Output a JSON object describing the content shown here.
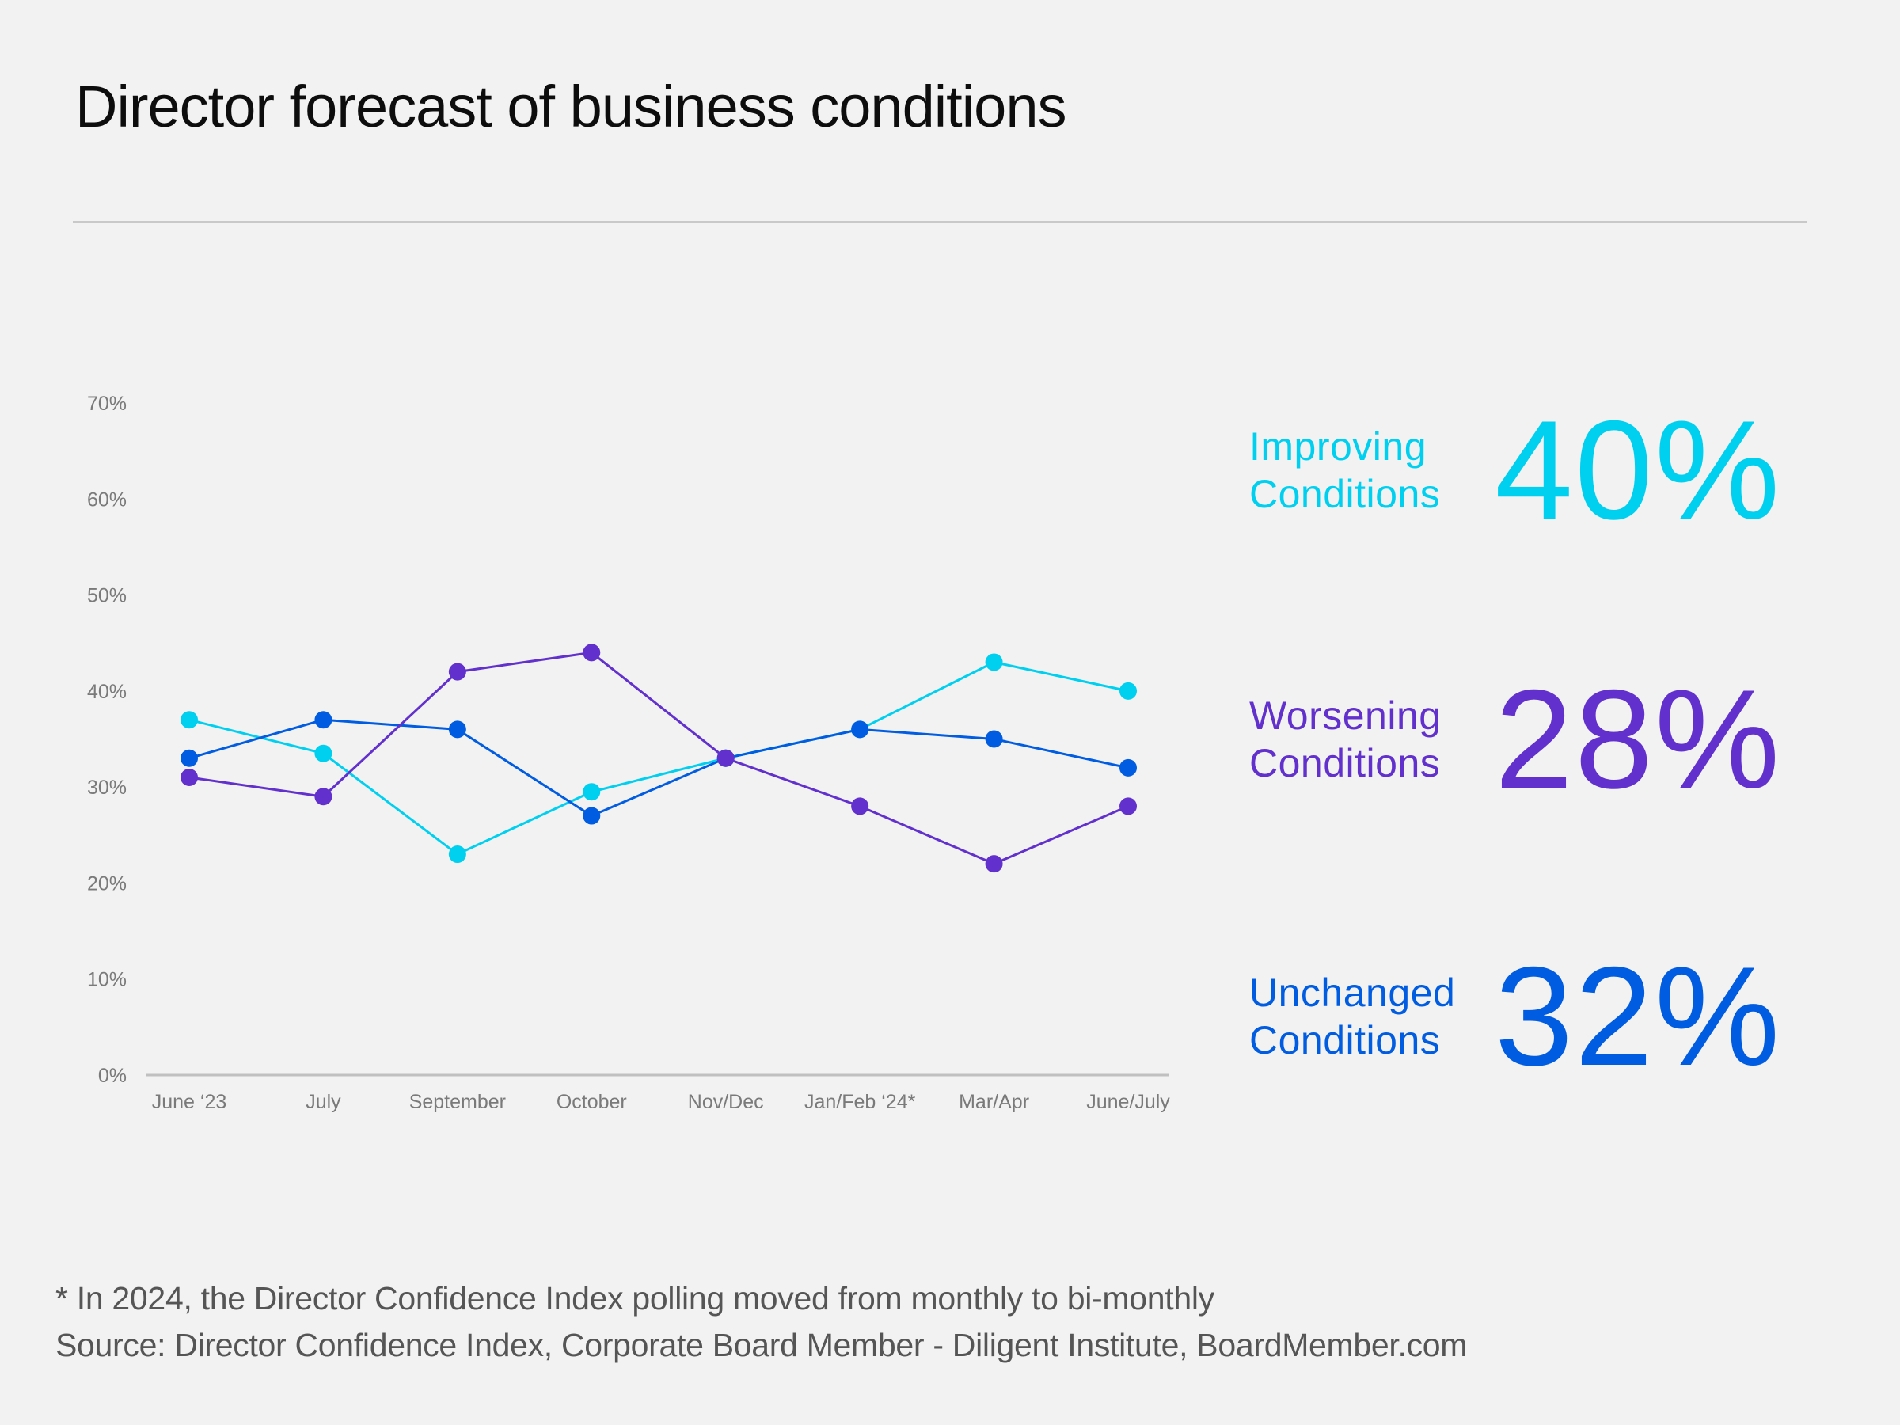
{
  "title": "Director forecast of business conditions",
  "colors": {
    "improving": "#00d0f0",
    "worsening": "#6230cc",
    "unchanged": "#005ce0",
    "axis": "#c0c0c0",
    "tick_text": "#7a7a7a"
  },
  "kpis": [
    {
      "line1": "Improving",
      "line2": "Conditions",
      "value": "40%",
      "color": "#00d0f0"
    },
    {
      "line1": "Worsening",
      "line2": "Conditions",
      "value": "28%",
      "color": "#6230cc"
    },
    {
      "line1": "Unchanged",
      "line2": "Conditions",
      "value": "32%",
      "color": "#005ce0"
    }
  ],
  "footer": {
    "note": "*  In 2024, the Director Confidence Index polling moved from monthly to bi-monthly",
    "source": "Source: Director Confidence Index, Corporate Board Member - Diligent Institute, BoardMember.com"
  },
  "chart_data": {
    "type": "line",
    "title": "Director forecast of business conditions",
    "xlabel": "",
    "ylabel": "",
    "categories": [
      "June ‘23",
      "July",
      "September",
      "October",
      "Nov/Dec",
      "Jan/Feb ‘24*",
      "Mar/Apr",
      "June/July"
    ],
    "y_ticks": [
      "0%",
      "10%",
      "20%",
      "30%",
      "40%",
      "50%",
      "60%",
      "70%"
    ],
    "ylim": [
      0,
      70
    ],
    "grid": false,
    "legend": "none (values labeled at right)",
    "series": [
      {
        "name": "Improving Conditions",
        "color": "#00d0f0",
        "values": [
          37,
          33.5,
          23,
          29.5,
          33,
          36,
          43,
          40
        ]
      },
      {
        "name": "Unchanged Conditions",
        "color": "#005ce0",
        "values": [
          33,
          37,
          36,
          27,
          33,
          36,
          35,
          32
        ]
      },
      {
        "name": "Worsening Conditions",
        "color": "#6230cc",
        "values": [
          31,
          29,
          42,
          44,
          33,
          28,
          22,
          28
        ]
      }
    ]
  }
}
